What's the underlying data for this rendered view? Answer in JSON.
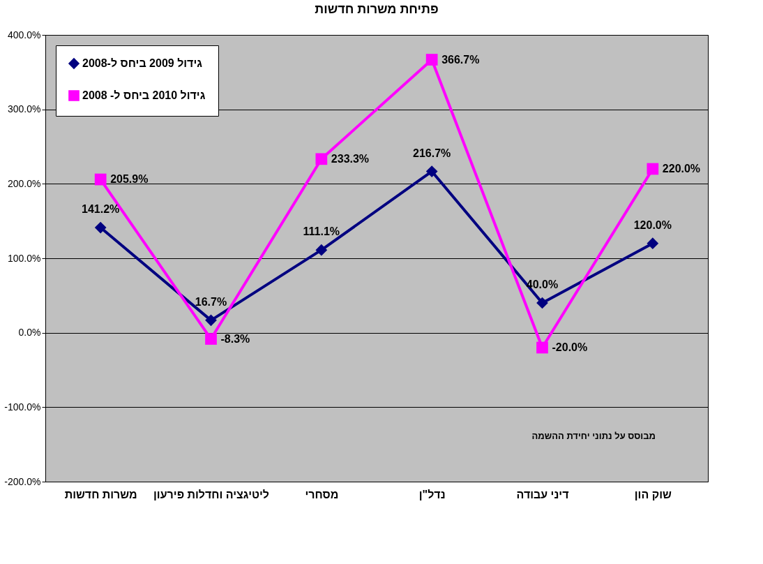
{
  "chart_data": {
    "type": "line",
    "title": "פתיחת משרות חדשות",
    "categories": [
      "משרות חדשות",
      "ליטיגציה וחדלות פירעון",
      "מסחרי",
      "נדל\"ן",
      "דיני עבודה",
      "שוק הון"
    ],
    "series": [
      {
        "name": "גידול 2009 ביחס ל-2008",
        "color": "#000080",
        "marker": "diamond",
        "values": [
          141.2,
          16.7,
          111.1,
          216.7,
          40.0,
          120.0
        ],
        "value_labels": [
          "141.2%",
          "16.7%",
          "111.1%",
          "216.7%",
          "40.0%",
          "120.0%"
        ]
      },
      {
        "name": "גידול 2010 ביחס ל- 2008",
        "color": "#ff00ff",
        "marker": "square",
        "values": [
          205.9,
          -8.3,
          233.3,
          366.7,
          -20.0,
          220.0
        ],
        "value_labels": [
          "205.9%",
          "-8.3%",
          "233.3%",
          "366.7%",
          "-20.0%",
          "220.0%"
        ]
      }
    ],
    "ylim": [
      -200,
      400
    ],
    "yticks": [
      {
        "value": -200,
        "label": "-200.0%"
      },
      {
        "value": -100,
        "label": "-100.0%"
      },
      {
        "value": 0,
        "label": "0.0%"
      },
      {
        "value": 100,
        "label": "100.0%"
      },
      {
        "value": 200,
        "label": "200.0%"
      },
      {
        "value": 300,
        "label": "300.0%"
      },
      {
        "value": 400,
        "label": "400.0%"
      }
    ],
    "grid": "y",
    "legend": "top left",
    "line_style": "solid",
    "annotations": [
      "מבוסס על נתוני יחידת ההשמה"
    ]
  }
}
